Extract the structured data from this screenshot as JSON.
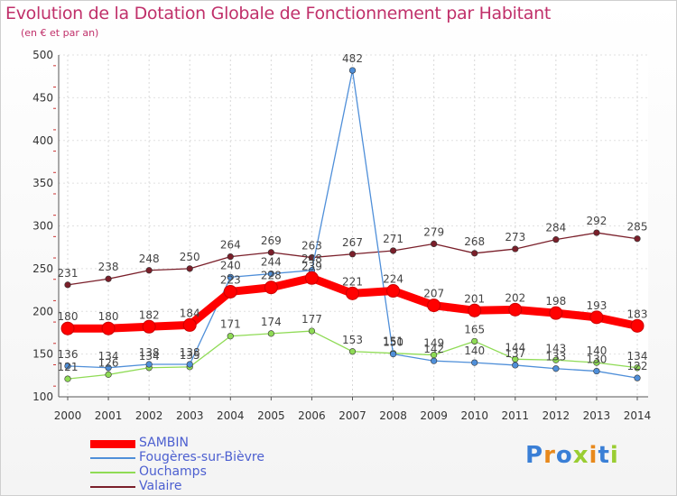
{
  "chart_data": {
    "type": "line",
    "title": "Evolution de la Dotation Globale de Fonctionnement par Habitant",
    "subtitle": "(en € et par an)",
    "xlabel": "",
    "ylabel": "",
    "ylim": [
      100,
      500
    ],
    "yticks": [
      100,
      150,
      200,
      250,
      300,
      350,
      400,
      450,
      500
    ],
    "categories": [
      "2000",
      "2001",
      "2002",
      "2003",
      "2004",
      "2005",
      "2006",
      "2007",
      "2008",
      "2009",
      "2010",
      "2011",
      "2012",
      "2013",
      "2014"
    ],
    "series": [
      {
        "name": "SAMBIN",
        "color": "#ff0000",
        "values": [
          180,
          180,
          182,
          184,
          223,
          228,
          239,
          221,
          224,
          207,
          201,
          202,
          198,
          193,
          183
        ]
      },
      {
        "name": "Fougères-sur-Bièvre",
        "color": "#4f8fd9",
        "values": [
          136,
          134,
          138,
          138,
          240,
          244,
          248,
          482,
          150,
          142,
          140,
          137,
          133,
          130,
          122
        ]
      },
      {
        "name": "Ouchamps",
        "color": "#8fdb55",
        "values": [
          121,
          126,
          134,
          135,
          171,
          174,
          177,
          153,
          151,
          149,
          165,
          144,
          143,
          140,
          134
        ]
      },
      {
        "name": "Valaire",
        "color": "#7a1f2a",
        "values": [
          231,
          238,
          248,
          250,
          264,
          269,
          263,
          267,
          271,
          279,
          268,
          273,
          284,
          292,
          285
        ]
      }
    ],
    "grid": true,
    "legend": "bottom-left"
  },
  "branding": {
    "logo_text": "Proxiti"
  }
}
